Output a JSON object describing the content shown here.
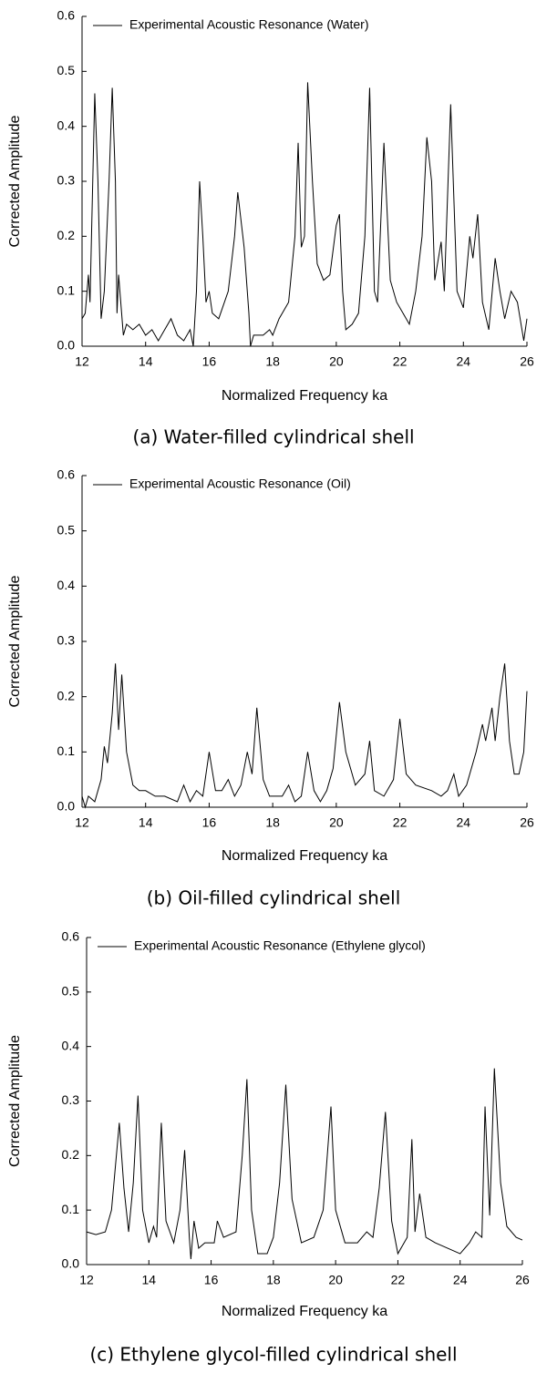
{
  "chart_data": [
    {
      "type": "line",
      "xlabel": "Normalized Frequency ka",
      "ylabel": "Corrected Amplitude",
      "caption": "(a) Water-filled cylindrical shell",
      "legend": "upper left",
      "xlim": [
        12,
        26
      ],
      "ylim": [
        0,
        0.6
      ],
      "xticks": [
        12,
        14,
        16,
        18,
        20,
        22,
        24,
        26
      ],
      "yticks": [
        {
          "value": 0,
          "label": "0.0"
        },
        0.1,
        0.2,
        0.3,
        0.4,
        0.5,
        0.6
      ],
      "x": [
        12,
        12.1,
        12.2,
        12.25,
        12.4,
        12.5,
        12.6,
        12.7,
        12.85,
        12.95,
        13.05,
        13.1,
        13.15,
        13.3,
        13.4,
        13.6,
        13.8,
        14,
        14.2,
        14.4,
        14.6,
        14.8,
        15,
        15.2,
        15.4,
        15.5,
        15.6,
        15.7,
        15.8,
        15.9,
        16,
        16.1,
        16.3,
        16.6,
        16.8,
        16.9,
        17.1,
        17.25,
        17.3,
        17.4,
        17.7,
        17.9,
        18,
        18.2,
        18.5,
        18.7,
        18.8,
        18.9,
        19,
        19.1,
        19.25,
        19.4,
        19.6,
        19.8,
        20,
        20.1,
        20.2,
        20.3,
        20.5,
        20.7,
        20.9,
        21.05,
        21.2,
        21.3,
        21.5,
        21.7,
        21.9,
        22.1,
        22.3,
        22.5,
        22.7,
        22.85,
        23,
        23.1,
        23.3,
        23.4,
        23.6,
        23.8,
        24,
        24.2,
        24.3,
        24.45,
        24.6,
        24.8,
        25,
        25.15,
        25.3,
        25.5,
        25.7,
        25.9,
        26
      ],
      "series": [
        {
          "name": "Experimental Acoustic Resonance (Water)",
          "color": "#000000",
          "values": [
            0.05,
            0.06,
            0.13,
            0.08,
            0.46,
            0.3,
            0.05,
            0.1,
            0.3,
            0.47,
            0.3,
            0.06,
            0.13,
            0.02,
            0.04,
            0.03,
            0.04,
            0.02,
            0.03,
            0.01,
            0.03,
            0.05,
            0.02,
            0.01,
            0.03,
            0,
            0.1,
            0.3,
            0.2,
            0.08,
            0.1,
            0.06,
            0.05,
            0.1,
            0.2,
            0.28,
            0.18,
            0.06,
            0,
            0.02,
            0.02,
            0.03,
            0.02,
            0.05,
            0.08,
            0.2,
            0.37,
            0.18,
            0.2,
            0.48,
            0.3,
            0.15,
            0.12,
            0.13,
            0.22,
            0.24,
            0.1,
            0.03,
            0.04,
            0.06,
            0.2,
            0.47,
            0.1,
            0.08,
            0.37,
            0.12,
            0.08,
            0.06,
            0.04,
            0.1,
            0.2,
            0.38,
            0.3,
            0.12,
            0.19,
            0.1,
            0.44,
            0.1,
            0.07,
            0.2,
            0.16,
            0.24,
            0.08,
            0.03,
            0.16,
            0.1,
            0.05,
            0.1,
            0.08,
            0.01,
            0.05
          ]
        }
      ]
    },
    {
      "type": "line",
      "xlabel": "Normalized Frequency ka",
      "ylabel": "Corrected Amplitude",
      "caption": "(b) Oil-filled cylindrical shell",
      "legend": "upper left",
      "xlim": [
        12,
        26
      ],
      "ylim": [
        0,
        0.6
      ],
      "xticks": [
        12,
        14,
        16,
        18,
        20,
        22,
        24,
        26
      ],
      "yticks": [
        {
          "value": 0,
          "label": "0.0"
        },
        0.1,
        0.2,
        0.3,
        0.4,
        0.5,
        0.6
      ],
      "x": [
        12,
        12.1,
        12.2,
        12.4,
        12.6,
        12.7,
        12.8,
        12.95,
        13.05,
        13.15,
        13.25,
        13.4,
        13.6,
        13.8,
        14,
        14.3,
        14.6,
        15,
        15.2,
        15.4,
        15.6,
        15.8,
        16,
        16.2,
        16.4,
        16.6,
        16.8,
        17,
        17.2,
        17.35,
        17.5,
        17.7,
        17.9,
        18.1,
        18.3,
        18.5,
        18.7,
        18.9,
        19.1,
        19.3,
        19.5,
        19.7,
        19.9,
        20.1,
        20.3,
        20.6,
        20.9,
        21.05,
        21.2,
        21.5,
        21.8,
        22,
        22.2,
        22.5,
        23,
        23.3,
        23.5,
        23.7,
        23.85,
        24.1,
        24.4,
        24.6,
        24.7,
        24.9,
        25,
        25.15,
        25.3,
        25.45,
        25.6,
        25.75,
        25.9,
        26
      ],
      "series": [
        {
          "name": "Experimental Acoustic Resonance (Oil)",
          "color": "#000000",
          "values": [
            0.02,
            0,
            0.02,
            0.01,
            0.05,
            0.11,
            0.08,
            0.17,
            0.26,
            0.14,
            0.24,
            0.1,
            0.04,
            0.03,
            0.03,
            0.02,
            0.02,
            0.01,
            0.04,
            0.01,
            0.03,
            0.02,
            0.1,
            0.03,
            0.03,
            0.05,
            0.02,
            0.04,
            0.1,
            0.06,
            0.18,
            0.05,
            0.02,
            0.02,
            0.02,
            0.04,
            0.01,
            0.02,
            0.1,
            0.03,
            0.01,
            0.03,
            0.07,
            0.19,
            0.1,
            0.04,
            0.06,
            0.12,
            0.03,
            0.02,
            0.05,
            0.16,
            0.06,
            0.04,
            0.03,
            0.02,
            0.03,
            0.06,
            0.02,
            0.04,
            0.1,
            0.15,
            0.12,
            0.18,
            0.12,
            0.2,
            0.26,
            0.12,
            0.06,
            0.06,
            0.1,
            0.21
          ]
        }
      ]
    },
    {
      "type": "line",
      "xlabel": "Normalized Frequency ka",
      "ylabel": "Corrected Amplitude",
      "caption": "(c) Ethylene glycol-filled cylindrical shell",
      "legend": "upper left",
      "xlim": [
        12,
        26
      ],
      "ylim": [
        0,
        0.6
      ],
      "xticks": [
        12,
        14,
        16,
        18,
        20,
        22,
        24,
        26
      ],
      "yticks": [
        {
          "value": 0,
          "label": "0.0"
        },
        0.1,
        0.2,
        0.3,
        0.4,
        0.5,
        0.6
      ],
      "x": [
        12,
        12.3,
        12.6,
        12.8,
        13.05,
        13.2,
        13.35,
        13.5,
        13.65,
        13.8,
        14,
        14.15,
        14.25,
        14.4,
        14.55,
        14.8,
        15,
        15.15,
        15.3,
        15.35,
        15.45,
        15.6,
        15.8,
        16.1,
        16.2,
        16.4,
        16.8,
        17,
        17.15,
        17.3,
        17.5,
        17.8,
        18,
        18.2,
        18.4,
        18.6,
        18.9,
        19.3,
        19.6,
        19.85,
        20,
        20.3,
        20.7,
        21,
        21.2,
        21.4,
        21.6,
        21.8,
        22,
        22.3,
        22.45,
        22.55,
        22.7,
        22.9,
        23.2,
        23.6,
        24,
        24.3,
        24.5,
        24.7,
        24.8,
        24.95,
        25.1,
        25.3,
        25.5,
        25.8,
        26
      ],
      "series": [
        {
          "name": "Experimental Acoustic Resonance (Ethylene glycol)",
          "color": "#000000",
          "values": [
            0.06,
            0.055,
            0.06,
            0.1,
            0.26,
            0.14,
            0.06,
            0.15,
            0.31,
            0.1,
            0.04,
            0.07,
            0.05,
            0.26,
            0.08,
            0.04,
            0.1,
            0.21,
            0.05,
            0.01,
            0.08,
            0.03,
            0.04,
            0.04,
            0.08,
            0.05,
            0.06,
            0.2,
            0.34,
            0.1,
            0.02,
            0.02,
            0.05,
            0.15,
            0.33,
            0.12,
            0.04,
            0.05,
            0.1,
            0.29,
            0.1,
            0.04,
            0.04,
            0.06,
            0.05,
            0.14,
            0.28,
            0.08,
            0.02,
            0.05,
            0.23,
            0.06,
            0.13,
            0.05,
            0.04,
            0.03,
            0.02,
            0.04,
            0.06,
            0.05,
            0.29,
            0.09,
            0.36,
            0.15,
            0.07,
            0.05,
            0.045
          ]
        }
      ]
    }
  ]
}
